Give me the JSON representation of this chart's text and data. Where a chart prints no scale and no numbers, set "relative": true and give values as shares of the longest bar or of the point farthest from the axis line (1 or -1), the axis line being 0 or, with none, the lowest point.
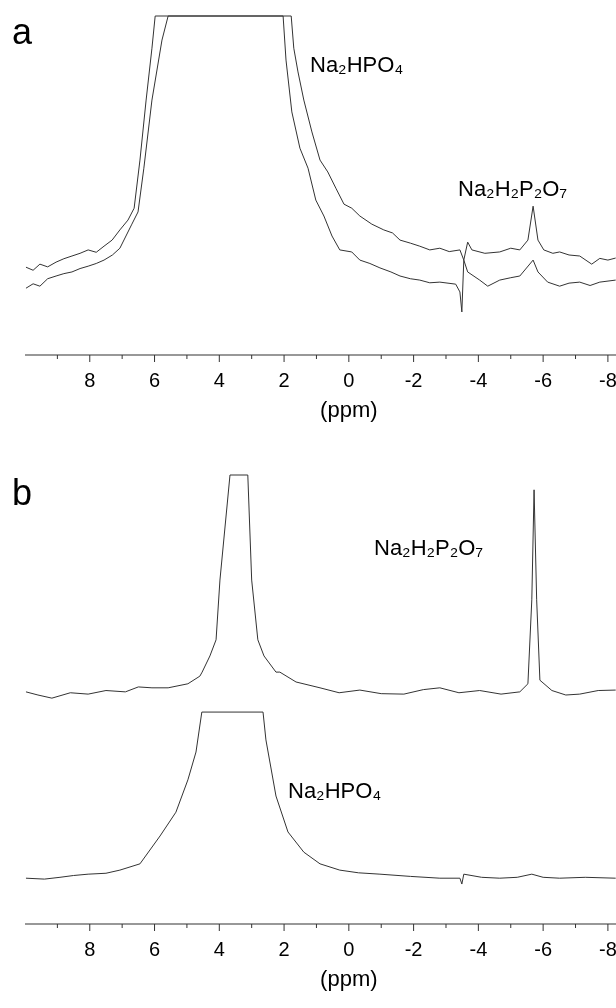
{
  "chart_data": [
    {
      "type": "line",
      "title": "a",
      "xlabel": "(ppm)",
      "relative": true,
      "xlim": [
        10,
        -8.25
      ],
      "xticks": [
        {
          "value": 9,
          "label": null
        },
        8,
        {
          "value": 7,
          "label": null
        },
        6,
        {
          "value": 5,
          "label": null
        },
        4,
        {
          "value": 3,
          "label": null
        },
        2,
        {
          "value": 1,
          "label": null
        },
        0,
        {
          "value": -1,
          "label": null
        },
        -2,
        {
          "value": -3,
          "label": null
        },
        -4,
        {
          "value": -5,
          "label": null
        },
        -6,
        {
          "value": -7,
          "label": null
        },
        -8
      ],
      "annotations": [
        "Na₂HPO₄",
        "Na₂H₂P₂O₇"
      ],
      "series": [
        {
          "color": "#333333",
          "x": [
            9.97,
            9.75,
            9.54,
            9.3,
            9.04,
            8.8,
            8.55,
            8.3,
            8.05,
            7.8,
            7.56,
            7.31,
            7.07,
            6.82,
            6.63,
            6.45,
            6.26,
            6.08,
            5.98,
            1.78,
            1.7,
            1.57,
            1.39,
            1.14,
            0.89,
            0.65,
            0.4,
            0.15,
            -0.09,
            -0.34,
            -0.71,
            -1.08,
            -1.35,
            -1.58,
            -1.9,
            -2.19,
            -2.5,
            -2.81,
            -3.1,
            -3.43,
            -3.55,
            -3.67,
            -3.8,
            -4.2,
            -4.66,
            -5.0,
            -5.28,
            -5.53,
            -5.69,
            -5.84,
            -6.02,
            -6.3,
            -6.51,
            -6.8,
            -7.13,
            -7.5,
            -7.75,
            -8.0,
            -8.24
          ],
          "values": [
            0.259,
            0.25,
            0.268,
            0.26,
            0.274,
            0.284,
            0.292,
            0.3,
            0.31,
            0.303,
            0.321,
            0.339,
            0.369,
            0.398,
            0.433,
            0.575,
            0.752,
            0.905,
            1.0,
            1.0,
            0.905,
            0.835,
            0.752,
            0.658,
            0.575,
            0.54,
            0.492,
            0.445,
            0.433,
            0.41,
            0.386,
            0.369,
            0.36,
            0.339,
            0.33,
            0.321,
            0.31,
            0.315,
            0.305,
            0.31,
            0.28,
            0.333,
            0.31,
            0.3,
            0.304,
            0.315,
            0.31,
            0.339,
            0.439,
            0.339,
            0.31,
            0.3,
            0.304,
            0.295,
            0.292,
            0.268,
            0.285,
            0.28,
            0.286
          ]
        },
        {
          "color": "#333333",
          "x": [
            9.97,
            9.75,
            9.54,
            9.3,
            9.04,
            8.8,
            8.55,
            8.3,
            8.05,
            7.8,
            7.56,
            7.3,
            7.07,
            6.7,
            6.51,
            6.33,
            6.08,
            5.77,
            5.58,
            2.03,
            1.94,
            1.76,
            1.51,
            1.26,
            1.02,
            0.77,
            0.52,
            0.28,
            -0.09,
            -0.34,
            -0.65,
            -0.96,
            -1.3,
            -1.58,
            -1.9,
            -2.19,
            -2.5,
            -2.81,
            -3.3,
            -3.43,
            -3.49,
            -3.55,
            -3.67,
            -4.04,
            -4.29,
            -4.66,
            -5.0,
            -5.28,
            -5.69,
            -5.84,
            -6.14,
            -6.51,
            -6.8,
            -7.13,
            -7.45,
            -7.75,
            -8.24
          ],
          "values": [
            0.197,
            0.21,
            0.203,
            0.225,
            0.233,
            0.24,
            0.245,
            0.255,
            0.262,
            0.27,
            0.28,
            0.295,
            0.315,
            0.386,
            0.422,
            0.551,
            0.752,
            0.929,
            1.0,
            1.0,
            0.87,
            0.717,
            0.61,
            0.551,
            0.457,
            0.41,
            0.351,
            0.31,
            0.304,
            0.28,
            0.27,
            0.257,
            0.245,
            0.233,
            0.225,
            0.221,
            0.213,
            0.215,
            0.209,
            0.186,
            0.127,
            0.28,
            0.245,
            0.221,
            0.203,
            0.221,
            0.228,
            0.233,
            0.28,
            0.245,
            0.215,
            0.203,
            0.212,
            0.215,
            0.205,
            0.215,
            0.221
          ]
        }
      ]
    },
    {
      "type": "line",
      "title": "b",
      "xlabel": "(ppm)",
      "relative": true,
      "xlim": [
        10,
        -8.25
      ],
      "xticks": [
        {
          "value": 9,
          "label": null
        },
        8,
        {
          "value": 7,
          "label": null
        },
        6,
        {
          "value": 5,
          "label": null
        },
        4,
        {
          "value": 3,
          "label": null
        },
        2,
        {
          "value": 1,
          "label": null
        },
        0,
        {
          "value": -1,
          "label": null
        },
        -2,
        {
          "value": -3,
          "label": null
        },
        -4,
        {
          "value": -5,
          "label": null
        },
        -6,
        {
          "value": -7,
          "label": null
        },
        -8
      ],
      "annotations": [
        "Na₂H₂P₂O₇",
        "Na₂HPO₄"
      ],
      "series": [
        {
          "color": "#333333",
          "x": [
            9.97,
            9.6,
            9.17,
            8.6,
            8.05,
            7.5,
            6.9,
            6.5,
            6.08,
            5.58,
            4.97,
            4.6,
            4.53,
            4.29,
            4.1,
            3.98,
            3.67,
            3.12,
            3.0,
            2.81,
            2.62,
            2.25,
            2.13,
            1.63,
            0.89,
            0.3,
            -0.34,
            -1.0,
            -1.7,
            -2.3,
            -2.81,
            -3.4,
            -4.04,
            -4.7,
            -5.28,
            -5.53,
            -5.65,
            -5.72,
            -5.8,
            -5.9,
            -6.27,
            -6.7,
            -7.13,
            -7.7,
            -8.24
          ],
          "values": [
            0.517,
            0.51,
            0.503,
            0.515,
            0.512,
            0.52,
            0.517,
            0.528,
            0.526,
            0.526,
            0.535,
            0.552,
            0.561,
            0.597,
            0.633,
            0.766,
            1.0,
            1.0,
            0.766,
            0.633,
            0.597,
            0.561,
            0.561,
            0.539,
            0.526,
            0.515,
            0.521,
            0.513,
            0.512,
            0.522,
            0.526,
            0.515,
            0.52,
            0.512,
            0.517,
            0.535,
            0.722,
            0.967,
            0.722,
            0.543,
            0.52,
            0.51,
            0.512,
            0.52,
            0.521
          ]
        },
        {
          "color": "#333333",
          "x": [
            9.97,
            9.4,
            8.92,
            8.5,
            8.05,
            7.5,
            7.07,
            6.45,
            5.83,
            5.34,
            4.97,
            4.72,
            4.54,
            2.65,
            2.56,
            2.25,
            1.88,
            1.39,
            0.89,
            0.28,
            -0.3,
            -0.96,
            -1.9,
            -2.81,
            -3.43,
            -3.49,
            -3.55,
            -4.1,
            -4.66,
            -5.2,
            -5.65,
            -6.0,
            -6.51,
            -7.3,
            -8.24
          ],
          "values": [
            0.102,
            0.1,
            0.104,
            0.108,
            0.111,
            0.113,
            0.12,
            0.134,
            0.196,
            0.249,
            0.321,
            0.383,
            0.472,
            0.472,
            0.41,
            0.285,
            0.205,
            0.16,
            0.134,
            0.12,
            0.114,
            0.111,
            0.106,
            0.102,
            0.102,
            0.089,
            0.111,
            0.104,
            0.102,
            0.104,
            0.111,
            0.104,
            0.102,
            0.104,
            0.102
          ]
        }
      ]
    }
  ]
}
